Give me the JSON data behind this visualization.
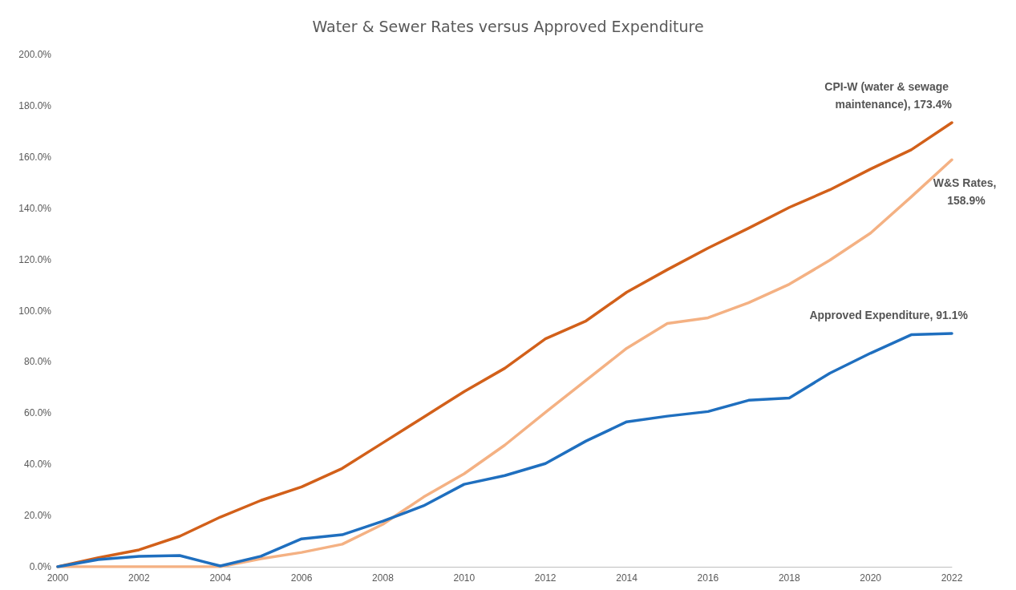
{
  "chart_data": {
    "type": "line",
    "title": "Water & Sewer Rates versus Approved Expenditure",
    "x": [
      2000,
      2001,
      2002,
      2003,
      2004,
      2005,
      2006,
      2007,
      2008,
      2009,
      2010,
      2011,
      2012,
      2013,
      2014,
      2015,
      2016,
      2017,
      2018,
      2019,
      2020,
      2021,
      2022
    ],
    "series": [
      {
        "name": "CPI-W (water & sewage maintenance),",
        "color": "#d2601a",
        "values": [
          0,
          3.5,
          6.6,
          11.9,
          19.4,
          25.9,
          31.2,
          38.4,
          48.4,
          58.4,
          68.4,
          77.5,
          89,
          96,
          107.2,
          116,
          124.4,
          132.2,
          140.3,
          147.2,
          155.3,
          162.8,
          173.4
        ],
        "value_labels": [
          null,
          null,
          null,
          null,
          null,
          null,
          null,
          null,
          null,
          null,
          null,
          null,
          null,
          null,
          null,
          null,
          null,
          null,
          null,
          null,
          null,
          null,
          "173.4%"
        ]
      },
      {
        "name": "W&S Rates,",
        "color": "#f4b183",
        "values": [
          0,
          0,
          0,
          0,
          0,
          3.1,
          5.6,
          8.8,
          16.6,
          27.2,
          36.3,
          47.5,
          60.3,
          72.8,
          85.3,
          95,
          97.2,
          103.1,
          110.3,
          119.7,
          130.3,
          144.4,
          158.9
        ],
        "value_labels": [
          null,
          null,
          null,
          null,
          null,
          null,
          null,
          null,
          null,
          null,
          null,
          null,
          null,
          null,
          null,
          null,
          null,
          null,
          null,
          null,
          null,
          null,
          "158.9%"
        ]
      },
      {
        "name": "Approved Expenditure,",
        "color": "#1f6fbf",
        "values": [
          0,
          2.8,
          4.1,
          4.4,
          0.3,
          4.1,
          10.9,
          12.5,
          17.8,
          23.8,
          32.2,
          35.6,
          40.3,
          49.1,
          56.6,
          58.8,
          60.6,
          65,
          65.9,
          75.6,
          83.4,
          90.6,
          91.1
        ],
        "value_labels": [
          null,
          null,
          null,
          null,
          null,
          null,
          null,
          null,
          null,
          null,
          null,
          null,
          null,
          null,
          null,
          null,
          null,
          null,
          null,
          null,
          null,
          null,
          "91.1%"
        ]
      }
    ],
    "xlim": [
      2000,
      2022
    ],
    "xticks": [
      2000,
      2002,
      2004,
      2006,
      2008,
      2010,
      2012,
      2014,
      2016,
      2018,
      2020,
      2022
    ],
    "ylim": [
      0,
      200
    ],
    "yticks": [
      {
        "value": 0,
        "label": "0.0%"
      },
      {
        "value": 20,
        "label": "20.0%"
      },
      {
        "value": 40,
        "label": "40.0%"
      },
      {
        "value": 60,
        "label": "60.0%"
      },
      {
        "value": 80,
        "label": "80.0%"
      },
      {
        "value": 100,
        "label": "100.0%"
      },
      {
        "value": 120,
        "label": "120.0%"
      },
      {
        "value": 140,
        "label": "140.0%"
      },
      {
        "value": 160,
        "label": "160.0%"
      },
      {
        "value": 180,
        "label": "180.0%"
      },
      {
        "value": 200,
        "label": "200.0%"
      }
    ],
    "grid": false,
    "legend": false,
    "marker": "none",
    "line_style": "solid"
  }
}
